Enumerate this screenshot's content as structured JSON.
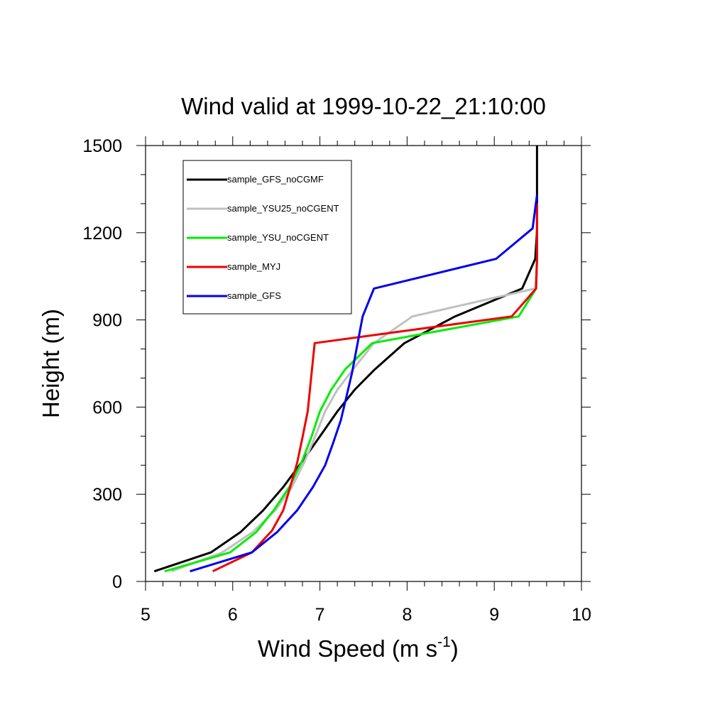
{
  "chart_data": {
    "type": "line",
    "title": "Wind valid at 1999-10-22_21:10:00",
    "xlabel": "Wind Speed (m s",
    "xlabel_superscript": "-1",
    "xlabel_suffix": ")",
    "ylabel": "Height (m)",
    "xlim": [
      5,
      10
    ],
    "ylim": [
      0,
      1500
    ],
    "x_ticks": [
      5,
      6,
      7,
      8,
      9,
      10
    ],
    "y_ticks": [
      0,
      300,
      600,
      900,
      1200,
      1500
    ],
    "grid": false,
    "legend_position": "top-left",
    "series": [
      {
        "name": "sample_GFS_noCGMF",
        "color": "#000000",
        "points": [
          [
            5.1,
            35
          ],
          [
            5.75,
            100
          ],
          [
            6.09,
            170
          ],
          [
            6.35,
            245
          ],
          [
            6.58,
            325
          ],
          [
            6.79,
            410
          ],
          [
            6.99,
            495
          ],
          [
            7.2,
            585
          ],
          [
            7.4,
            660
          ],
          [
            7.63,
            730
          ],
          [
            7.97,
            820
          ],
          [
            8.55,
            912
          ],
          [
            9.32,
            1008
          ],
          [
            9.47,
            1110
          ],
          [
            9.49,
            1210
          ],
          [
            9.49,
            1310
          ],
          [
            9.49,
            1420
          ],
          [
            9.49,
            1500
          ]
        ]
      },
      {
        "name": "sample_YSU25_noCGENT",
        "color": "#c0c0c0",
        "points": [
          [
            5.3,
            35
          ],
          [
            5.88,
            100
          ],
          [
            6.23,
            170
          ],
          [
            6.49,
            245
          ],
          [
            6.68,
            325
          ],
          [
            6.82,
            410
          ],
          [
            6.94,
            495
          ],
          [
            7.06,
            585
          ],
          [
            7.2,
            660
          ],
          [
            7.38,
            730
          ],
          [
            7.62,
            820
          ],
          [
            8.06,
            912
          ],
          [
            9.47,
            1008
          ],
          [
            9.49,
            1110
          ],
          [
            9.49,
            1220
          ],
          [
            9.49,
            1300
          ]
        ]
      },
      {
        "name": "sample_YSU_noCGENT",
        "color": "#00ee00",
        "points": [
          [
            5.22,
            35
          ],
          [
            5.97,
            100
          ],
          [
            6.27,
            170
          ],
          [
            6.47,
            245
          ],
          [
            6.65,
            325
          ],
          [
            6.79,
            410
          ],
          [
            6.9,
            495
          ],
          [
            7.0,
            585
          ],
          [
            7.13,
            660
          ],
          [
            7.29,
            730
          ],
          [
            7.6,
            820
          ],
          [
            9.28,
            912
          ],
          [
            9.48,
            1008
          ],
          [
            9.49,
            1110
          ],
          [
            9.49,
            1220
          ],
          [
            9.49,
            1300
          ]
        ]
      },
      {
        "name": "sample_MYJ",
        "color": "#ee0000",
        "points": [
          [
            5.77,
            35
          ],
          [
            6.22,
            100
          ],
          [
            6.45,
            175
          ],
          [
            6.58,
            245
          ],
          [
            6.66,
            325
          ],
          [
            6.74,
            410
          ],
          [
            6.8,
            495
          ],
          [
            6.86,
            585
          ],
          [
            6.94,
            820
          ],
          [
            9.2,
            912
          ],
          [
            9.48,
            1008
          ],
          [
            9.49,
            1110
          ],
          [
            9.49,
            1220
          ],
          [
            9.49,
            1300
          ]
        ]
      },
      {
        "name": "sample_GFS",
        "color": "#0000ee",
        "points": [
          [
            5.51,
            35
          ],
          [
            6.22,
            100
          ],
          [
            6.51,
            170
          ],
          [
            6.74,
            245
          ],
          [
            6.92,
            325
          ],
          [
            7.06,
            400
          ],
          [
            7.15,
            475
          ],
          [
            7.24,
            555
          ],
          [
            7.3,
            630
          ],
          [
            7.37,
            720
          ],
          [
            7.49,
            912
          ],
          [
            7.62,
            1008
          ],
          [
            9.02,
            1110
          ],
          [
            9.44,
            1215
          ],
          [
            9.49,
            1330
          ]
        ]
      }
    ]
  }
}
